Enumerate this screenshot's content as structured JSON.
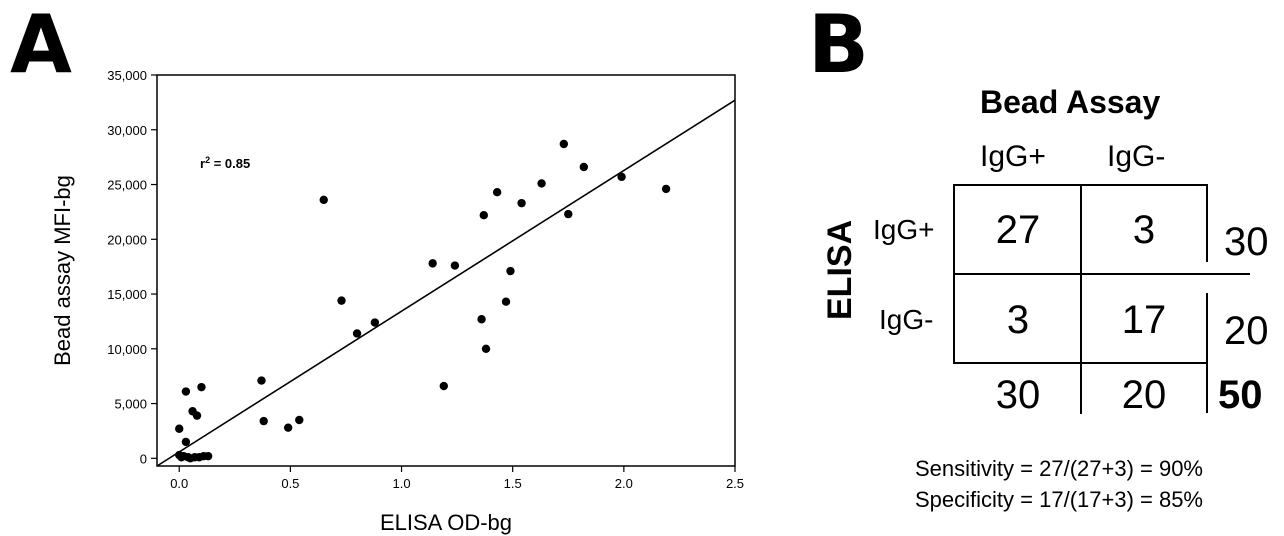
{
  "panel_a": {
    "letter": "A"
  },
  "panel_b": {
    "letter": "B"
  },
  "chart_data": {
    "type": "scatter",
    "title": "",
    "xlabel": "ELISA OD-bg",
    "ylabel": "Bead assay MFI-bg",
    "xlim": [
      -0.1,
      2.5
    ],
    "ylim": [
      -700,
      35000
    ],
    "xticks": [
      0.0,
      0.5,
      1.0,
      1.5,
      2.0,
      2.5
    ],
    "xtick_labels": [
      "0.0",
      "0.5",
      "1.0",
      "1.5",
      "2.0",
      "2.5"
    ],
    "yticks": [
      0,
      5000,
      10000,
      15000,
      20000,
      25000,
      30000,
      35000
    ],
    "ytick_labels": [
      "0",
      "5,000",
      "10,000",
      "15,000",
      "20,000",
      "25,000",
      "30,000",
      "35,000"
    ],
    "annotation": "r² = 0.85",
    "points": [
      [
        0.0,
        2700
      ],
      [
        0.0,
        300
      ],
      [
        0.01,
        100
      ],
      [
        0.02,
        200
      ],
      [
        0.03,
        6100
      ],
      [
        0.03,
        1500
      ],
      [
        0.04,
        100
      ],
      [
        0.05,
        0
      ],
      [
        0.06,
        4300
      ],
      [
        0.07,
        100
      ],
      [
        0.08,
        3900
      ],
      [
        0.09,
        100
      ],
      [
        0.1,
        6500
      ],
      [
        0.11,
        200
      ],
      [
        0.13,
        200
      ],
      [
        0.37,
        7100
      ],
      [
        0.38,
        3400
      ],
      [
        0.49,
        2800
      ],
      [
        0.54,
        3500
      ],
      [
        0.65,
        23600
      ],
      [
        0.73,
        14400
      ],
      [
        0.8,
        11400
      ],
      [
        0.88,
        12400
      ],
      [
        1.14,
        17800
      ],
      [
        1.19,
        6600
      ],
      [
        1.24,
        17600
      ],
      [
        1.36,
        12700
      ],
      [
        1.37,
        22200
      ],
      [
        1.38,
        10000
      ],
      [
        1.43,
        24300
      ],
      [
        1.47,
        14300
      ],
      [
        1.49,
        17100
      ],
      [
        1.54,
        23300
      ],
      [
        1.63,
        25100
      ],
      [
        1.73,
        28700
      ],
      [
        1.75,
        22300
      ],
      [
        1.82,
        26600
      ],
      [
        1.99,
        25700
      ],
      [
        2.19,
        24600
      ]
    ],
    "fit_line": {
      "x": [
        -0.1,
        2.5
      ],
      "y": [
        -700,
        32700
      ]
    }
  },
  "contingency": {
    "title": "Bead Assay",
    "side_label": "ELISA",
    "col_headers": [
      "IgG+",
      "IgG-"
    ],
    "row_headers": [
      "IgG+",
      "IgG-"
    ],
    "cells": [
      [
        "27",
        "3"
      ],
      [
        "3",
        "17"
      ]
    ],
    "row_totals": [
      "30",
      "20"
    ],
    "col_totals": [
      "30",
      "20"
    ],
    "grand_total": "50",
    "sensitivity": "Sensitivity = 27/(27+3) = 90%",
    "specificity": "Specificity  = 17/(17+3) = 85%"
  }
}
